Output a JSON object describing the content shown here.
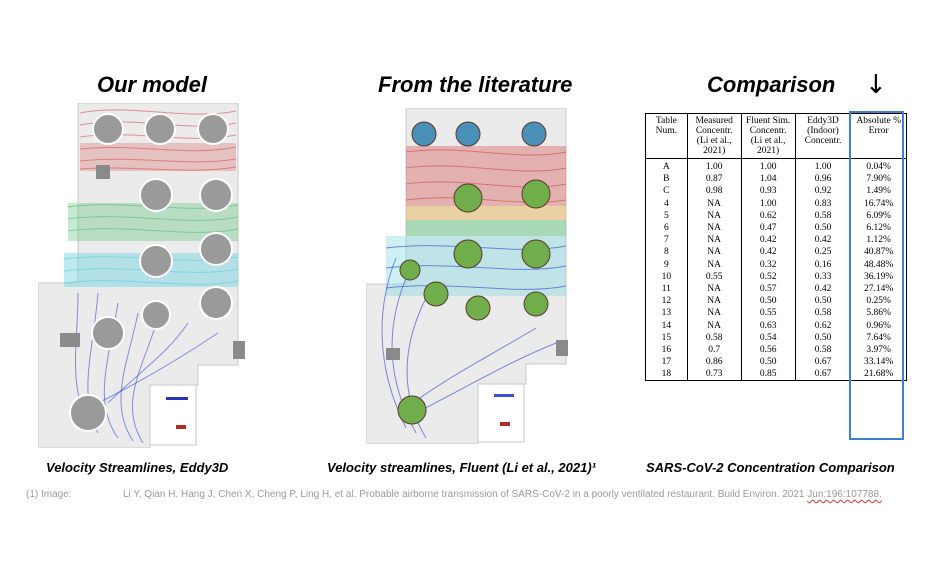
{
  "titles": {
    "left": "Our model",
    "middle": "From the literature",
    "right": "Comparison"
  },
  "arrow": "↓",
  "captions": {
    "left": "Velocity Streamlines, Eddy3D",
    "middle": "Velocity streamlines, Fluent (Li et al., 2021)¹",
    "right": "SARS-CoV-2 Concentration Comparison"
  },
  "footnote": {
    "label": "(1) Image:",
    "text": "Li Y, Qian H, Hang J, Chen X, Cheng P, Ling H, et al. Probable airborne transmission of SARS-CoV-2 in a poorly ventilated restaurant. Build Environ. 2021 ",
    "ref": "Jun;196:107788."
  },
  "table": {
    "headers": [
      "Table Num.",
      "Measured Concentr. (Li et al., 2021)",
      "Fluent Sim. Concentr. (Li et al., 2021)",
      "Eddy3D (Indoor) Concentr.",
      "Absolute % Error"
    ],
    "rows": [
      [
        "A",
        "1.00",
        "1.00",
        "1.00",
        "0.04%"
      ],
      [
        "B",
        "0.87",
        "1.04",
        "0.96",
        "7.90%"
      ],
      [
        "C",
        "0.98",
        "0.93",
        "0.92",
        "1.49%"
      ],
      [
        "4",
        "NA",
        "1.00",
        "0.83",
        "16.74%"
      ],
      [
        "5",
        "NA",
        "0.62",
        "0.58",
        "6.09%"
      ],
      [
        "6",
        "NA",
        "0.47",
        "0.50",
        "6.12%"
      ],
      [
        "7",
        "NA",
        "0.42",
        "0.42",
        "1.12%"
      ],
      [
        "8",
        "NA",
        "0.42",
        "0.25",
        "40.87%"
      ],
      [
        "9",
        "NA",
        "0.32",
        "0.16",
        "48.48%"
      ],
      [
        "10",
        "0.55",
        "0.52",
        "0.33",
        "36.19%"
      ],
      [
        "11",
        "NA",
        "0.57",
        "0.42",
        "27.14%"
      ],
      [
        "12",
        "NA",
        "0.50",
        "0.50",
        "0.25%"
      ],
      [
        "13",
        "NA",
        "0.55",
        "0.58",
        "5.86%"
      ],
      [
        "14",
        "NA",
        "0.63",
        "0.62",
        "0.96%"
      ],
      [
        "15",
        "0.58",
        "0.54",
        "0.50",
        "7.64%"
      ],
      [
        "16",
        "0.7",
        "0.56",
        "0.58",
        "3.97%"
      ],
      [
        "17",
        "0.86",
        "0.50",
        "0.67",
        "33.14%"
      ],
      [
        "18",
        "0.73",
        "0.85",
        "0.67",
        "21.68%"
      ]
    ]
  },
  "colors": {
    "highlight_box": "#3f7fcf",
    "footnote_text": "#9a9a9a",
    "stream_red": "#d64545",
    "stream_green": "#5cc47a",
    "stream_cyan": "#6fd3e0",
    "stream_blue": "#3a4fd1",
    "table_fill_left": "#9a9a9a",
    "table_fill_right": "#6fae4a",
    "table_fill_right_top": "#4a8fb8"
  }
}
